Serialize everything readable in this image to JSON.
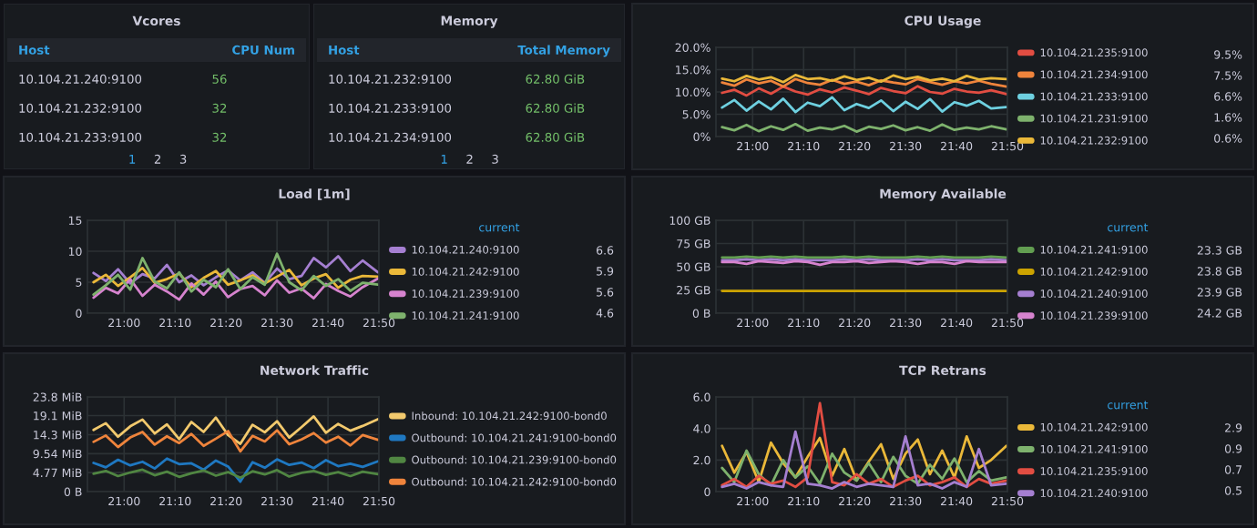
{
  "chart_data": [
    {
      "type": "other",
      "title": "Vcores",
      "annotations": [
        "Host",
        "CPU Num",
        "10.104.21.240:9100",
        "56",
        "10.104.21.232:9100",
        "32",
        "10.104.21.233:9100",
        "32",
        "1",
        "2",
        "3"
      ]
    },
    {
      "type": "other",
      "title": "Memory",
      "annotations": [
        "Host",
        "Total Memory",
        "10.104.21.232:9100",
        "62.80 GiB",
        "10.104.21.233:9100",
        "62.80 GiB",
        "10.104.21.234:9100",
        "62.80 GiB",
        "1",
        "2",
        "3"
      ]
    },
    {
      "type": "line",
      "title": "CPU Usage",
      "x": [
        20.9,
        20.94,
        20.98,
        21.02,
        21.06,
        21.1,
        21.14,
        21.18,
        21.22,
        21.26,
        21.3,
        21.34,
        21.38,
        21.42,
        21.46,
        21.5,
        21.54,
        21.58,
        21.62,
        21.66,
        21.7,
        21.74,
        21.78,
        21.83
      ],
      "xlim": [
        20.88,
        21.8333
      ],
      "xticks": [
        {
          "value": 21.0,
          "label": "21:00"
        },
        {
          "value": 21.1667,
          "label": "21:10"
        },
        {
          "value": 21.3333,
          "label": "21:20"
        },
        {
          "value": 21.5,
          "label": "21:30"
        },
        {
          "value": 21.6667,
          "label": "21:40"
        },
        {
          "value": 21.8333,
          "label": "21:50"
        }
      ],
      "ylim": [
        0,
        20
      ],
      "yticks": [
        {
          "value": 0,
          "label": "0%"
        },
        {
          "value": 5,
          "label": "5.0%"
        },
        {
          "value": 10,
          "label": "10.0%"
        },
        {
          "value": 15,
          "label": "15.0%"
        },
        {
          "value": 20,
          "label": "20.0%"
        }
      ],
      "grid": true,
      "legend": "right",
      "annotations": [
        "9.5%",
        "7.5%",
        "6.6%",
        "1.6%",
        "0.6%"
      ],
      "series": [
        {
          "name": "10.104.21.235:9100",
          "color": "#e24d42",
          "values": [
            9.8,
            10.5,
            9.2,
            10.8,
            9.6,
            11.2,
            10.1,
            9.4,
            10.6,
            9.9,
            11.0,
            10.3,
            9.5,
            10.9,
            10.2,
            9.7,
            11.3,
            10.0,
            9.6,
            10.7,
            10.1,
            9.8,
            10.4,
            9.5
          ]
        },
        {
          "name": "10.104.21.234:9100",
          "color": "#ef843c",
          "values": [
            12.1,
            11.4,
            12.8,
            11.9,
            12.5,
            11.2,
            12.9,
            12.0,
            11.6,
            12.7,
            11.8,
            12.3,
            11.5,
            12.6,
            12.1,
            11.7,
            12.9,
            12.2,
            11.6,
            12.4,
            11.9,
            12.5,
            11.8,
            11.2
          ]
        },
        {
          "name": "10.104.21.233:9100",
          "color": "#6ed0e0",
          "values": [
            6.5,
            8.2,
            5.8,
            7.9,
            6.1,
            8.5,
            5.5,
            7.6,
            6.8,
            8.8,
            5.9,
            7.3,
            6.4,
            8.1,
            5.7,
            7.8,
            6.2,
            8.4,
            5.6,
            7.7,
            6.9,
            8.0,
            6.3,
            6.6
          ]
        },
        {
          "name": "10.104.21.231:9100",
          "color": "#7eb26d",
          "values": [
            2.1,
            1.4,
            2.6,
            1.2,
            2.3,
            1.5,
            2.8,
            1.3,
            2.0,
            1.6,
            2.4,
            1.1,
            2.2,
            1.7,
            2.5,
            1.4,
            2.1,
            1.3,
            2.7,
            1.5,
            2.0,
            1.6,
            2.3,
            1.6
          ]
        },
        {
          "name": "10.104.21.232:9100",
          "color": "#eab839",
          "values": [
            13.0,
            12.4,
            13.6,
            12.8,
            13.3,
            12.2,
            13.8,
            12.9,
            13.1,
            12.5,
            13.5,
            12.7,
            13.2,
            12.3,
            13.7,
            12.9,
            13.4,
            12.6,
            13.0,
            12.4,
            13.6,
            12.8,
            13.1,
            12.9
          ]
        }
      ]
    },
    {
      "type": "line",
      "title": "Load [1m]",
      "legend_title": "current",
      "x": [
        20.9,
        20.94,
        20.98,
        21.02,
        21.06,
        21.1,
        21.14,
        21.18,
        21.22,
        21.26,
        21.3,
        21.34,
        21.38,
        21.42,
        21.46,
        21.5,
        21.54,
        21.58,
        21.62,
        21.66,
        21.7,
        21.74,
        21.78,
        21.83
      ],
      "xlim": [
        20.88,
        21.8333
      ],
      "xticks": [
        {
          "value": 21.0,
          "label": "21:00"
        },
        {
          "value": 21.1667,
          "label": "21:10"
        },
        {
          "value": 21.3333,
          "label": "21:20"
        },
        {
          "value": 21.5,
          "label": "21:30"
        },
        {
          "value": 21.6667,
          "label": "21:40"
        },
        {
          "value": 21.8333,
          "label": "21:50"
        }
      ],
      "ylim": [
        0,
        15
      ],
      "yticks": [
        0,
        5,
        10,
        15
      ],
      "grid": true,
      "legend": "right",
      "annotations": [
        "6.6",
        "5.9",
        "5.6",
        "4.6"
      ],
      "series": [
        {
          "name": "10.104.21.240:9100",
          "color": "#a57fd1",
          "values": [
            6.5,
            5.2,
            7.1,
            4.8,
            6.3,
            5.6,
            7.8,
            5.0,
            6.1,
            4.5,
            5.8,
            6.9,
            5.3,
            6.6,
            4.9,
            7.2,
            5.5,
            6.0,
            8.9,
            7.4,
            9.2,
            6.8,
            8.5,
            6.6
          ]
        },
        {
          "name": "10.104.21.242:9100",
          "color": "#eab839",
          "values": [
            5.0,
            6.2,
            4.4,
            5.8,
            7.3,
            4.9,
            5.5,
            6.4,
            4.2,
            5.7,
            6.8,
            4.6,
            5.3,
            6.1,
            4.8,
            5.9,
            7.0,
            4.5,
            5.6,
            6.3,
            4.1,
            5.4,
            6.0,
            5.9
          ]
        },
        {
          "name": "10.104.21.239:9100",
          "color": "#d683ce",
          "values": [
            2.5,
            4.1,
            3.2,
            5.5,
            2.8,
            4.6,
            3.5,
            2.2,
            4.8,
            3.0,
            5.1,
            2.6,
            3.9,
            4.4,
            2.9,
            5.3,
            3.3,
            4.0,
            2.4,
            4.7,
            3.6,
            2.7,
            4.2,
            5.6
          ]
        },
        {
          "name": "10.104.21.241:9100",
          "color": "#7eb26d",
          "values": [
            3.0,
            4.5,
            6.2,
            3.8,
            8.9,
            5.1,
            4.0,
            6.6,
            3.5,
            5.4,
            4.2,
            7.1,
            3.9,
            5.8,
            4.6,
            9.6,
            5.0,
            3.7,
            6.0,
            4.4,
            5.5,
            3.6,
            4.9,
            4.6
          ]
        }
      ]
    },
    {
      "type": "line",
      "title": "Memory Available",
      "legend_title": "current",
      "x": [
        20.9,
        20.94,
        20.98,
        21.02,
        21.06,
        21.1,
        21.14,
        21.18,
        21.22,
        21.26,
        21.3,
        21.34,
        21.38,
        21.42,
        21.46,
        21.5,
        21.54,
        21.58,
        21.62,
        21.66,
        21.7,
        21.74,
        21.78,
        21.83
      ],
      "xlim": [
        20.88,
        21.8333
      ],
      "xticks": [
        {
          "value": 21.0,
          "label": "21:00"
        },
        {
          "value": 21.1667,
          "label": "21:10"
        },
        {
          "value": 21.3333,
          "label": "21:20"
        },
        {
          "value": 21.5,
          "label": "21:30"
        },
        {
          "value": 21.6667,
          "label": "21:40"
        },
        {
          "value": 21.8333,
          "label": "21:50"
        }
      ],
      "ylim": [
        0,
        100
      ],
      "yticks": [
        {
          "value": 0,
          "label": "0 B"
        },
        {
          "value": 25,
          "label": "25 GB"
        },
        {
          "value": 50,
          "label": "50 GB"
        },
        {
          "value": 75,
          "label": "75 GB"
        },
        {
          "value": 100,
          "label": "100 GB"
        }
      ],
      "grid": true,
      "legend": "right",
      "annotations": [
        "23.3 GB",
        "23.8 GB",
        "23.9 GB",
        "24.2 GB"
      ],
      "series": [
        {
          "name": "10.104.21.241:9100",
          "color": "#629e51",
          "values": [
            60,
            60,
            61,
            60,
            61,
            60,
            61,
            60,
            60,
            60,
            61,
            60,
            61,
            60,
            60,
            60,
            61,
            60,
            61,
            60,
            60,
            60,
            61,
            60
          ]
        },
        {
          "name": "10.104.21.242:9100",
          "color": "#cca300",
          "values": [
            24,
            24,
            24,
            24,
            24,
            24,
            24,
            24,
            24,
            24,
            24,
            24,
            24,
            24,
            24,
            24,
            24,
            24,
            24,
            24,
            24,
            24,
            24,
            24
          ]
        },
        {
          "name": "10.104.21.240:9100",
          "color": "#a57fd1",
          "values": [
            57,
            57,
            58,
            57,
            58,
            57,
            58,
            57,
            57,
            57,
            58,
            57,
            58,
            57,
            57,
            57,
            58,
            57,
            58,
            57,
            57,
            57,
            58,
            57
          ]
        },
        {
          "name": "10.104.21.239:9100",
          "color": "#d683ce",
          "values": [
            55,
            55,
            53,
            56,
            55,
            54,
            56,
            55,
            52,
            55,
            55,
            56,
            54,
            55,
            56,
            55,
            53,
            55,
            55,
            53,
            56,
            55,
            55,
            55
          ]
        }
      ]
    },
    {
      "type": "line",
      "title": "Network Traffic",
      "x": [
        20.9,
        20.94,
        20.98,
        21.02,
        21.06,
        21.1,
        21.14,
        21.18,
        21.22,
        21.26,
        21.3,
        21.34,
        21.38,
        21.42,
        21.46,
        21.5,
        21.54,
        21.58,
        21.62,
        21.66,
        21.7,
        21.74,
        21.78,
        21.83
      ],
      "xlim": [
        20.88,
        21.8333
      ],
      "xticks": [
        {
          "value": 21.0,
          "label": "21:00"
        },
        {
          "value": 21.1667,
          "label": "21:10"
        },
        {
          "value": 21.3333,
          "label": "21:20"
        },
        {
          "value": 21.5,
          "label": "21:30"
        },
        {
          "value": 21.6667,
          "label": "21:40"
        },
        {
          "value": 21.8333,
          "label": "21:50"
        }
      ],
      "ylim": [
        0,
        23.8
      ],
      "yticks": [
        {
          "value": 0,
          "label": "0 B"
        },
        {
          "value": 4.77,
          "label": "4.77 MiB"
        },
        {
          "value": 9.54,
          "label": "9.54 MiB"
        },
        {
          "value": 14.3,
          "label": "14.3 MiB"
        },
        {
          "value": 19.1,
          "label": "19.1 MiB"
        },
        {
          "value": 23.8,
          "label": "23.8 MiB"
        }
      ],
      "grid": true,
      "legend": "right",
      "series": [
        {
          "name": "Inbound: 10.104.21.242:9100-bond0",
          "color": "#f2c96d",
          "values": [
            15.5,
            17.2,
            13.8,
            16.4,
            18.1,
            14.6,
            16.9,
            13.2,
            17.5,
            15.0,
            18.6,
            14.2,
            12.0,
            16.8,
            14.9,
            17.7,
            13.6,
            16.2,
            18.9,
            14.8,
            17.0,
            15.3,
            16.5,
            18.2
          ]
        },
        {
          "name": "Outbound: 10.104.21.241:9100-bond0",
          "color": "#1f78c1",
          "values": [
            7.2,
            6.1,
            8.0,
            6.6,
            7.5,
            5.8,
            8.3,
            6.9,
            7.1,
            5.5,
            7.8,
            6.3,
            2.5,
            7.4,
            6.0,
            8.1,
            6.7,
            7.3,
            5.9,
            7.9,
            6.4,
            7.0,
            6.2,
            7.6
          ]
        },
        {
          "name": "Outbound: 10.104.21.239:9100-bond0",
          "color": "#508642",
          "values": [
            4.5,
            5.2,
            3.9,
            4.8,
            5.5,
            4.1,
            5.0,
            3.7,
            4.6,
            5.3,
            4.0,
            4.9,
            3.5,
            5.1,
            4.3,
            5.4,
            3.8,
            4.7,
            5.2,
            4.2,
            4.9,
            3.9,
            5.0,
            4.4
          ]
        },
        {
          "name": "Outbound: 10.104.21.242:9100-bond0",
          "color": "#ef843c",
          "values": [
            12.5,
            14.1,
            11.2,
            13.6,
            15.0,
            11.8,
            13.9,
            12.2,
            14.5,
            11.5,
            13.3,
            15.2,
            10.1,
            14.0,
            12.6,
            15.4,
            11.9,
            13.1,
            14.7,
            12.3,
            13.8,
            11.6,
            14.2,
            13.0
          ]
        }
      ]
    },
    {
      "type": "line",
      "title": "TCP Retrans",
      "legend_title": "current",
      "x": [
        20.9,
        20.94,
        20.98,
        21.02,
        21.06,
        21.1,
        21.14,
        21.18,
        21.22,
        21.26,
        21.3,
        21.34,
        21.38,
        21.42,
        21.46,
        21.5,
        21.54,
        21.58,
        21.62,
        21.66,
        21.7,
        21.74,
        21.78,
        21.83
      ],
      "xlim": [
        20.88,
        21.8333
      ],
      "xticks": [
        {
          "value": 21.0,
          "label": "21:00"
        },
        {
          "value": 21.1667,
          "label": "21:10"
        },
        {
          "value": 21.3333,
          "label": "21:20"
        },
        {
          "value": 21.5,
          "label": "21:30"
        },
        {
          "value": 21.6667,
          "label": "21:40"
        },
        {
          "value": 21.8333,
          "label": "21:50"
        }
      ],
      "ylim": [
        0,
        6
      ],
      "yticks": [
        0,
        {
          "value": 2,
          "label": "2.0"
        },
        {
          "value": 4,
          "label": "4.0"
        },
        {
          "value": 6,
          "label": "6.0"
        }
      ],
      "grid": true,
      "legend": "right",
      "annotations": [
        "2.9",
        "0.9",
        "0.7",
        "0.5"
      ],
      "series": [
        {
          "name": "10.104.21.242:9100",
          "color": "#eab839",
          "values": [
            2.9,
            1.2,
            2.5,
            0.6,
            3.1,
            1.8,
            0.9,
            2.2,
            3.4,
            1.0,
            2.7,
            0.7,
            1.9,
            3.0,
            0.8,
            2.4,
            3.3,
            1.1,
            2.6,
            0.9,
            3.5,
            1.5,
            2.0,
            2.9
          ]
        },
        {
          "name": "10.104.21.241:9100",
          "color": "#7eb26d",
          "values": [
            1.5,
            0.6,
            2.6,
            1.1,
            0.4,
            2.0,
            0.9,
            1.6,
            0.5,
            2.4,
            1.2,
            0.7,
            1.8,
            0.6,
            2.2,
            1.0,
            0.5,
            1.7,
            0.8,
            2.1,
            0.6,
            1.3,
            0.7,
            0.9
          ]
        },
        {
          "name": "10.104.21.235:9100",
          "color": "#e24d42",
          "values": [
            0.4,
            0.8,
            0.3,
            1.0,
            0.5,
            0.7,
            0.3,
            0.9,
            5.6,
            0.6,
            0.4,
            1.1,
            0.5,
            0.8,
            0.3,
            0.7,
            1.0,
            0.4,
            0.6,
            0.9,
            0.3,
            0.8,
            0.5,
            0.7
          ]
        },
        {
          "name": "10.104.21.240:9100",
          "color": "#a57fd1",
          "values": [
            0.3,
            0.5,
            0.2,
            0.6,
            0.4,
            0.3,
            3.8,
            0.5,
            0.4,
            0.2,
            0.6,
            0.3,
            0.5,
            0.4,
            0.3,
            3.5,
            0.4,
            0.5,
            0.2,
            0.6,
            0.3,
            2.7,
            0.4,
            0.5
          ]
        }
      ]
    }
  ]
}
